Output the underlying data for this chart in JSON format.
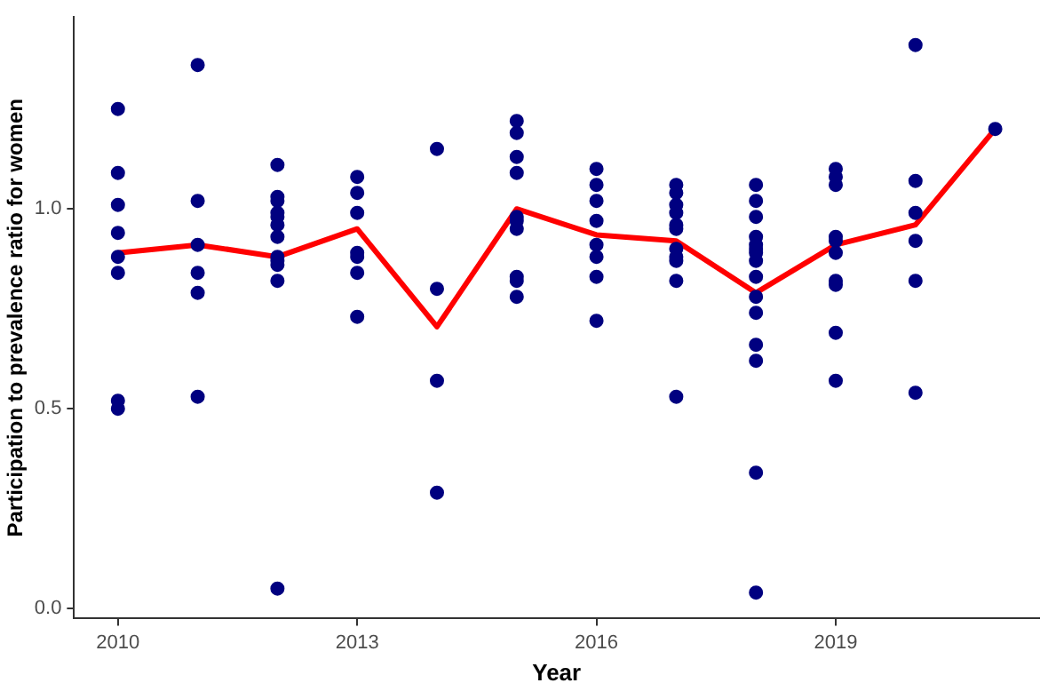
{
  "chart_data": {
    "type": "scatter",
    "xlabel": "Year",
    "ylabel": "Participation to prevalence ratio for women",
    "xlim": [
      2009.45,
      2021.55
    ],
    "xticks": [
      2010,
      2013,
      2016,
      2019
    ],
    "ylim": [
      -0.025,
      1.48
    ],
    "yticks": [
      {
        "value": 0,
        "label": "0.0"
      },
      {
        "value": 0.5,
        "label": "0.5"
      },
      {
        "value": 1,
        "label": "1.0"
      }
    ],
    "grid": false,
    "legend": false,
    "series": [
      {
        "color": "#000080",
        "marker": "circle",
        "x": [
          2010,
          2010,
          2010,
          2010,
          2010,
          2010,
          2010,
          2010,
          2011,
          2011,
          2011,
          2011,
          2011,
          2011,
          2012,
          2012,
          2012,
          2012,
          2012,
          2012,
          2012,
          2012,
          2012,
          2012,
          2012,
          2012,
          2013,
          2013,
          2013,
          2013,
          2013,
          2013,
          2013,
          2014,
          2014,
          2014,
          2014,
          2015,
          2015,
          2015,
          2015,
          2015,
          2015,
          2015,
          2015,
          2015,
          2015,
          2016,
          2016,
          2016,
          2016,
          2016,
          2016,
          2016,
          2016,
          2017,
          2017,
          2017,
          2017,
          2017,
          2017,
          2017,
          2017,
          2017,
          2017,
          2017,
          2018,
          2018,
          2018,
          2018,
          2018,
          2018,
          2018,
          2018,
          2018,
          2018,
          2018,
          2018,
          2018,
          2018,
          2018,
          2019,
          2019,
          2019,
          2019,
          2019,
          2019,
          2019,
          2019,
          2019,
          2019,
          2020,
          2020,
          2020,
          2020,
          2020,
          2020,
          2021
        ],
        "values": [
          1.25,
          1.09,
          1.01,
          0.94,
          0.88,
          0.84,
          0.52,
          0.5,
          1.36,
          1.02,
          0.91,
          0.84,
          0.79,
          0.53,
          1.11,
          1.03,
          1.02,
          0.99,
          0.98,
          0.96,
          0.93,
          0.88,
          0.87,
          0.86,
          0.82,
          0.05,
          1.08,
          1.04,
          0.99,
          0.89,
          0.88,
          0.84,
          0.73,
          1.15,
          0.8,
          0.57,
          0.29,
          1.22,
          1.19,
          1.13,
          1.09,
          0.98,
          0.97,
          0.95,
          0.83,
          0.82,
          0.78,
          1.1,
          1.06,
          1.02,
          0.97,
          0.91,
          0.88,
          0.83,
          0.72,
          1.06,
          1.04,
          1.01,
          0.99,
          0.96,
          0.95,
          0.9,
          0.88,
          0.87,
          0.82,
          0.53,
          1.06,
          1.02,
          0.98,
          0.93,
          0.91,
          0.9,
          0.89,
          0.87,
          0.83,
          0.78,
          0.74,
          0.66,
          0.62,
          0.34,
          0.04,
          1.1,
          1.08,
          1.06,
          0.93,
          0.92,
          0.89,
          0.82,
          0.81,
          0.69,
          0.57,
          1.41,
          1.07,
          0.99,
          0.92,
          0.82,
          0.54,
          1.2
        ]
      },
      {
        "type": "line",
        "color": "#ff0000",
        "marker": "none",
        "line_style": "solid",
        "x": [
          2010,
          2011,
          2012,
          2013,
          2014,
          2015,
          2016,
          2017,
          2018,
          2019,
          2020,
          2021
        ],
        "values": [
          0.89,
          0.91,
          0.88,
          0.95,
          0.705,
          1.0,
          0.935,
          0.92,
          0.79,
          0.91,
          0.96,
          1.2
        ]
      }
    ]
  }
}
